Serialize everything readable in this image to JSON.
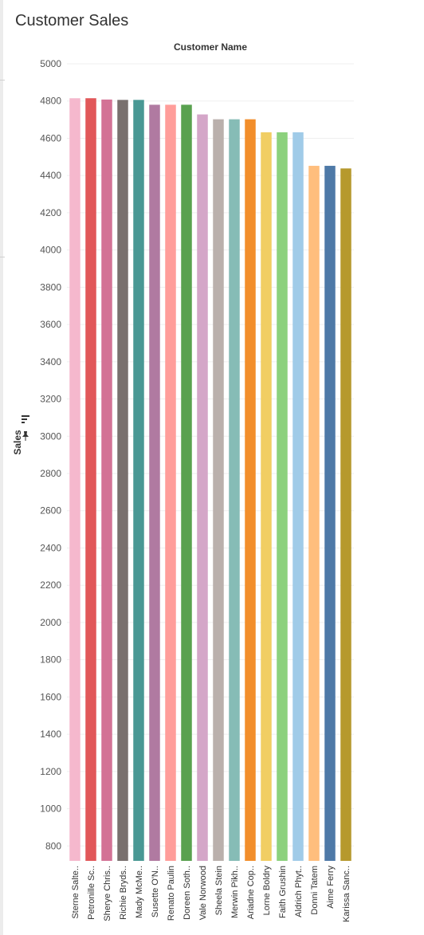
{
  "sheet_title": "Customer Sales",
  "chart_data": {
    "type": "bar",
    "title": "Customer Sales",
    "column_header": "Customer Name",
    "ylabel": "Sales",
    "ylim": [
      720,
      5000
    ],
    "yticks": [
      800,
      1000,
      1200,
      1400,
      1600,
      1800,
      2000,
      2200,
      2400,
      2600,
      2800,
      3000,
      3200,
      3400,
      3600,
      3800,
      4000,
      4200,
      4400,
      4600,
      4800,
      5000
    ],
    "categories": [
      "Sterne Salte..",
      "Petronille Sc..",
      "Sherye Chris..",
      "Richie Bryds..",
      "Mady McMe..",
      "Susette O'N..",
      "Renato Paulin",
      "Doreen Soth..",
      "Vale Norwood",
      "Sheela Stein",
      "Merwin Pikh..",
      "Ariadne Cop..",
      "Lorne Boldry",
      "Faith Grushin",
      "Aldrich Phyt..",
      "Donni Tatem",
      "Aime Ferry",
      "Karissa Sanc.."
    ],
    "values": [
      4815,
      4815,
      4808,
      4806,
      4806,
      4780,
      4780,
      4780,
      4728,
      4702,
      4702,
      4702,
      4632,
      4632,
      4632,
      4452,
      4452,
      4438
    ],
    "colors": [
      "#f5b8cd",
      "#e15759",
      "#d37295",
      "#79706e",
      "#499894",
      "#b07aa1",
      "#ff9d9a",
      "#59a14f",
      "#d4a6c8",
      "#bab0ac",
      "#86bcb6",
      "#f28e2b",
      "#f1ce63",
      "#8cd17d",
      "#a0cbe8",
      "#ffbe7d",
      "#4e79a7",
      "#b6992d"
    ],
    "grid": true
  },
  "icons": {
    "sort": "sort-descending-icon",
    "pin": "pin-icon"
  }
}
